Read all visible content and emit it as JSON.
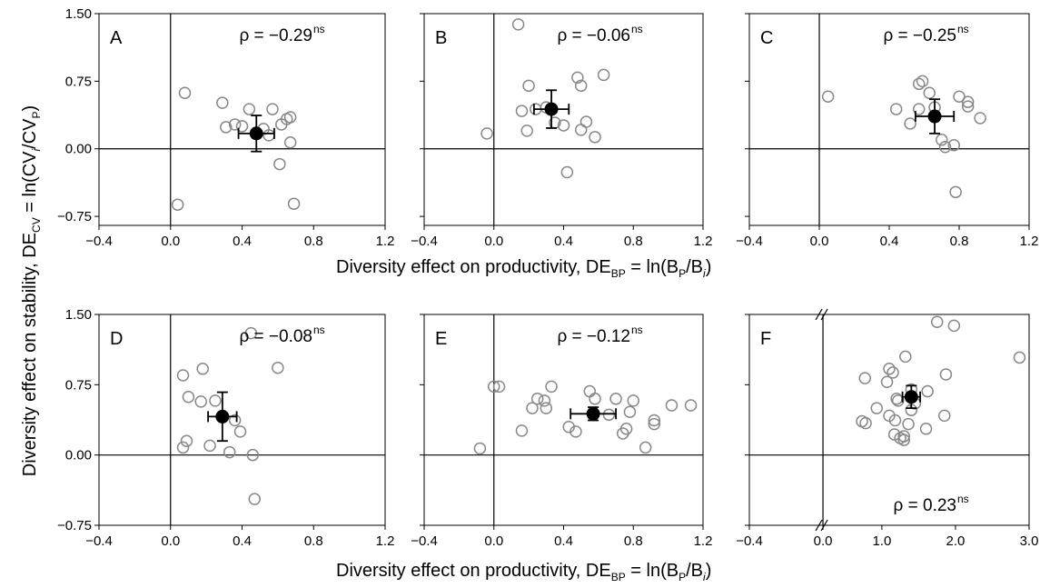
{
  "figure": {
    "ylabel": {
      "prefix": "Diversity effect on stability, DE",
      "sub1": "CV",
      "mid": " = ln(CV",
      "sub2": "i",
      "mid2": "/CV",
      "sub3": "P",
      "suffix": ")"
    },
    "xlabel": {
      "prefix": "Diversity effect on productivity, DE",
      "sub1": "BP",
      "mid": " = ln(B",
      "sub2": "P",
      "mid2": "/B",
      "sub3": "i",
      "suffix": ")"
    }
  },
  "chart_data": [
    {
      "type": "scatter",
      "panel": "A",
      "xlim": [
        -0.4,
        1.2
      ],
      "ylim": [
        -0.85,
        1.5
      ],
      "xticks": [
        "−0.4",
        "0.0",
        "0.4",
        "0.8",
        "1.2"
      ],
      "yticks": [
        "−0.75",
        "0.00",
        "0.75",
        "1.50"
      ],
      "rho": "ρ = −0.29",
      "rho_sup": "ns",
      "points": [
        [
          0.08,
          0.62
        ],
        [
          0.04,
          -0.62
        ],
        [
          0.29,
          0.51
        ],
        [
          0.31,
          0.24
        ],
        [
          0.36,
          0.27
        ],
        [
          0.4,
          0.25
        ],
        [
          0.44,
          0.44
        ],
        [
          0.52,
          0.22
        ],
        [
          0.55,
          0.15
        ],
        [
          0.57,
          0.44
        ],
        [
          0.62,
          0.27
        ],
        [
          0.65,
          0.33
        ],
        [
          0.67,
          0.35
        ],
        [
          0.67,
          0.07
        ],
        [
          0.69,
          -0.61
        ],
        [
          0.61,
          -0.17
        ],
        [
          0.48,
          0.18
        ]
      ],
      "mean": {
        "x": 0.48,
        "y": 0.17,
        "xerr": 0.1,
        "yerr": 0.2
      }
    },
    {
      "type": "scatter",
      "panel": "B",
      "xlim": [
        -0.4,
        1.2
      ],
      "ylim": [
        -0.85,
        1.5
      ],
      "xticks": [
        "−0.4",
        "0.0",
        "0.4",
        "0.8",
        "1.2"
      ],
      "yticks": [],
      "rho": "ρ = −0.06",
      "rho_sup": "ns",
      "points": [
        [
          -0.04,
          0.17
        ],
        [
          0.14,
          1.38
        ],
        [
          0.16,
          0.42
        ],
        [
          0.19,
          0.2
        ],
        [
          0.2,
          0.7
        ],
        [
          0.24,
          0.44
        ],
        [
          0.3,
          0.46
        ],
        [
          0.35,
          0.29
        ],
        [
          0.4,
          0.26
        ],
        [
          0.42,
          -0.26
        ],
        [
          0.48,
          0.79
        ],
        [
          0.5,
          0.7
        ],
        [
          0.5,
          0.21
        ],
        [
          0.53,
          0.3
        ],
        [
          0.58,
          0.13
        ],
        [
          0.63,
          0.82
        ]
      ],
      "mean": {
        "x": 0.33,
        "y": 0.44,
        "xerr": 0.1,
        "yerr": 0.21
      }
    },
    {
      "type": "scatter",
      "panel": "C",
      "xlim": [
        -0.4,
        1.2
      ],
      "ylim": [
        -0.85,
        1.5
      ],
      "xticks": [
        "−0.4",
        "0.0",
        "0.4",
        "0.8",
        "1.2"
      ],
      "yticks": [],
      "rho": "ρ = −0.25",
      "rho_sup": "ns",
      "points": [
        [
          0.05,
          0.58
        ],
        [
          0.44,
          0.44
        ],
        [
          0.52,
          0.28
        ],
        [
          0.57,
          0.72
        ],
        [
          0.59,
          0.75
        ],
        [
          0.63,
          0.62
        ],
        [
          0.66,
          0.46
        ],
        [
          0.7,
          0.1
        ],
        [
          0.72,
          0.02
        ],
        [
          0.77,
          0.04
        ],
        [
          0.78,
          -0.48
        ],
        [
          0.8,
          0.58
        ],
        [
          0.85,
          0.52
        ],
        [
          0.85,
          0.47
        ],
        [
          0.92,
          0.34
        ],
        [
          0.57,
          0.44
        ]
      ],
      "mean": {
        "x": 0.66,
        "y": 0.36,
        "xerr": 0.11,
        "yerr": 0.19
      }
    },
    {
      "type": "scatter",
      "panel": "D",
      "xlim": [
        -0.4,
        1.2
      ],
      "ylim": [
        -0.75,
        1.5
      ],
      "xticks": [
        "−0.4",
        "0.0",
        "0.4",
        "0.8",
        "1.2"
      ],
      "yticks": [
        "−0.75",
        "0.00",
        "0.75",
        "1.50"
      ],
      "rho": "ρ = −0.08",
      "rho_sup": "ns",
      "points": [
        [
          0.07,
          0.85
        ],
        [
          0.07,
          0.08
        ],
        [
          0.09,
          0.15
        ],
        [
          0.1,
          0.62
        ],
        [
          0.17,
          0.57
        ],
        [
          0.18,
          0.92
        ],
        [
          0.22,
          0.1
        ],
        [
          0.25,
          0.58
        ],
        [
          0.33,
          0.03
        ],
        [
          0.36,
          0.37
        ],
        [
          0.39,
          0.25
        ],
        [
          0.45,
          1.3
        ],
        [
          0.46,
          0.0
        ],
        [
          0.47,
          -0.47
        ],
        [
          0.6,
          0.93
        ]
      ],
      "mean": {
        "x": 0.29,
        "y": 0.41,
        "xerr": 0.08,
        "yerr": 0.26
      }
    },
    {
      "type": "scatter",
      "panel": "E",
      "xlim": [
        -0.4,
        1.2
      ],
      "ylim": [
        -0.75,
        1.5
      ],
      "xticks": [
        "−0.4",
        "0.0",
        "0.4",
        "0.8",
        "1.2"
      ],
      "yticks": [],
      "rho": "ρ = −0.12",
      "rho_sup": "ns",
      "points": [
        [
          -0.08,
          0.07
        ],
        [
          0.0,
          0.73
        ],
        [
          0.03,
          0.73
        ],
        [
          0.16,
          0.26
        ],
        [
          0.22,
          0.5
        ],
        [
          0.25,
          0.6
        ],
        [
          0.29,
          0.58
        ],
        [
          0.3,
          0.5
        ],
        [
          0.33,
          0.73
        ],
        [
          0.43,
          0.3
        ],
        [
          0.47,
          0.25
        ],
        [
          0.55,
          0.68
        ],
        [
          0.58,
          0.6
        ],
        [
          0.66,
          0.43
        ],
        [
          0.7,
          0.6
        ],
        [
          0.74,
          0.23
        ],
        [
          0.78,
          0.46
        ],
        [
          0.8,
          0.58
        ],
        [
          0.87,
          0.08
        ],
        [
          0.92,
          0.37
        ],
        [
          0.92,
          0.33
        ],
        [
          1.02,
          0.53
        ],
        [
          1.13,
          0.53
        ],
        [
          0.76,
          0.28
        ]
      ],
      "mean": {
        "x": 0.57,
        "y": 0.44,
        "xerr": 0.13,
        "yerr": 0.07
      }
    },
    {
      "type": "scatter",
      "panel": "F",
      "xlim": [
        -0.8,
        3.0
      ],
      "ylim": [
        -0.75,
        1.5
      ],
      "xticks": [
        "−0.4",
        "0.0",
        "1.0",
        "2.0",
        "3.0"
      ],
      "yticks": [],
      "rho": "ρ = 0.23",
      "rho_sup": "ns",
      "points": [
        [
          0.73,
          0.36
        ],
        [
          0.77,
          0.82
        ],
        [
          0.78,
          0.34
        ],
        [
          0.93,
          0.5
        ],
        [
          1.07,
          0.78
        ],
        [
          1.1,
          0.92
        ],
        [
          1.15,
          0.88
        ],
        [
          1.17,
          0.22
        ],
        [
          1.18,
          0.37
        ],
        [
          1.22,
          0.58
        ],
        [
          1.25,
          0.18
        ],
        [
          1.3,
          0.2
        ],
        [
          1.3,
          0.16
        ],
        [
          1.32,
          1.05
        ],
        [
          1.36,
          0.33
        ],
        [
          1.4,
          0.7
        ],
        [
          1.45,
          0.55
        ],
        [
          1.6,
          0.28
        ],
        [
          1.62,
          0.68
        ],
        [
          1.75,
          1.42
        ],
        [
          1.85,
          0.42
        ],
        [
          1.87,
          0.86
        ],
        [
          1.98,
          1.38
        ],
        [
          2.87,
          1.04
        ],
        [
          1.2,
          0.6
        ],
        [
          1.1,
          0.42
        ],
        [
          1.4,
          0.48
        ]
      ],
      "mean": {
        "x": 1.4,
        "y": 0.62,
        "xerr": 0.12,
        "yerr": 0.12
      }
    }
  ],
  "colors": {
    "open_marker": "#888888",
    "mean_marker": "#000000",
    "axis": "#000000"
  }
}
